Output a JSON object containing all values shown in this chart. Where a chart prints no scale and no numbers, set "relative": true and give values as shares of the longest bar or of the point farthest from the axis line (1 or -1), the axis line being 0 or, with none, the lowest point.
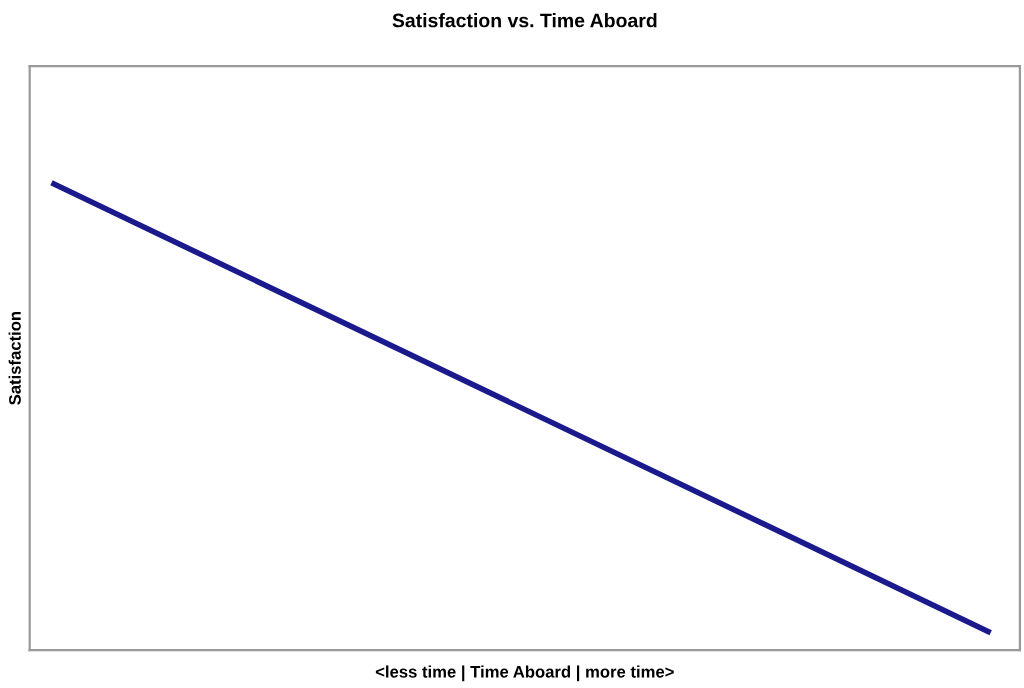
{
  "chart_data": {
    "type": "line",
    "title": "Satisfaction vs. Time Aboard",
    "xlabel": "<less time | Time Aboard | more time>",
    "ylabel": "Satisfaction",
    "relative": true,
    "categories": [
      null,
      null
    ],
    "series": [
      {
        "color": "#1a1a8c",
        "values": [
          1,
          0.04
        ]
      }
    ],
    "grid": false,
    "legend": false,
    "marker": "none",
    "line_style": "solid"
  }
}
